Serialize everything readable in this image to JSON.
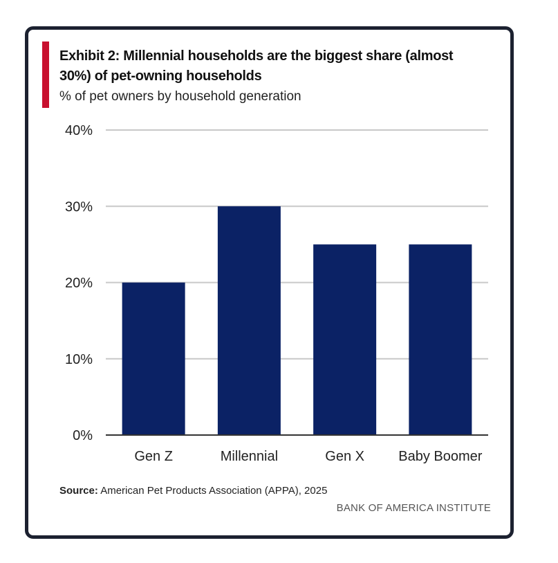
{
  "header": {
    "title": "Exhibit 2: Millennial households are the biggest share (almost 30%) of pet-owning households",
    "subtitle": "% of pet owners by household generation"
  },
  "footer": {
    "source_label": "Source:",
    "source_text": " American Pet Products Association (APPA), 2025",
    "brand": "BANK OF AMERICA INSTITUTE"
  },
  "colors": {
    "bar": "#0b2265",
    "accent": "#c8102e",
    "grid": "#c8c8c8",
    "frame": "#1c2130"
  },
  "chart_data": {
    "type": "bar",
    "title": "Exhibit 2: Millennial households are the biggest share (almost 30%) of pet-owning households",
    "subtitle": "% of pet owners by household generation",
    "categories": [
      "Gen Z",
      "Millennial",
      "Gen X",
      "Baby Boomer"
    ],
    "values": [
      20,
      30,
      25,
      25
    ],
    "ylim": [
      0,
      40
    ],
    "yticks": [
      0,
      10,
      20,
      30,
      40
    ],
    "ytick_labels": [
      "0%",
      "10%",
      "20%",
      "30%",
      "40%"
    ],
    "xlabel": "",
    "ylabel": "",
    "grid": true,
    "legend": "none"
  }
}
